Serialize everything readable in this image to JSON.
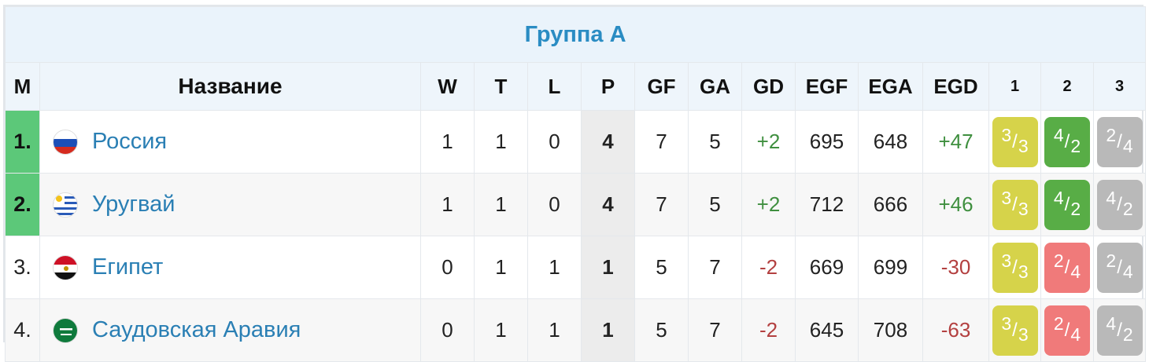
{
  "group_title": "Группа A",
  "headers": {
    "pos": "M",
    "name": "Название",
    "w": "W",
    "t": "T",
    "l": "L",
    "p": "P",
    "gf": "GF",
    "ga": "GA",
    "gd": "GD",
    "egf": "EGF",
    "ega": "EGA",
    "egd": "EGD",
    "r1": "1",
    "r2": "2",
    "r3": "3"
  },
  "colors": {
    "yellow_chip": "#d6d34a",
    "green_chip": "#58ad46",
    "gray_chip": "#b9b9b9",
    "red_chip": "#f07a7a",
    "qualify": "#5cc879"
  },
  "rows": [
    {
      "pos": "1.",
      "qualified": true,
      "team": "Россия",
      "flag": "russia-flag-icon",
      "w": "1",
      "t": "1",
      "l": "0",
      "p": "4",
      "gf": "7",
      "ga": "5",
      "gd": "+2",
      "egf": "695",
      "ega": "648",
      "egd": "+47",
      "results": [
        {
          "top": "3",
          "bot": "3",
          "color": "yellow"
        },
        {
          "top": "4",
          "bot": "2",
          "color": "green"
        },
        {
          "top": "2",
          "bot": "4",
          "color": "gray"
        }
      ]
    },
    {
      "pos": "2.",
      "qualified": true,
      "team": "Уругвай",
      "flag": "uruguay-flag-icon",
      "w": "1",
      "t": "1",
      "l": "0",
      "p": "4",
      "gf": "7",
      "ga": "5",
      "gd": "+2",
      "egf": "712",
      "ega": "666",
      "egd": "+46",
      "results": [
        {
          "top": "3",
          "bot": "3",
          "color": "yellow"
        },
        {
          "top": "4",
          "bot": "2",
          "color": "green"
        },
        {
          "top": "4",
          "bot": "2",
          "color": "gray"
        }
      ]
    },
    {
      "pos": "3.",
      "qualified": false,
      "team": "Египет",
      "flag": "egypt-flag-icon",
      "w": "0",
      "t": "1",
      "l": "1",
      "p": "1",
      "gf": "5",
      "ga": "7",
      "gd": "-2",
      "egf": "669",
      "ega": "699",
      "egd": "-30",
      "results": [
        {
          "top": "3",
          "bot": "3",
          "color": "yellow"
        },
        {
          "top": "2",
          "bot": "4",
          "color": "red"
        },
        {
          "top": "2",
          "bot": "4",
          "color": "gray"
        }
      ]
    },
    {
      "pos": "4.",
      "qualified": false,
      "team": "Саудовская Аравия",
      "flag": "saudi-arabia-flag-icon",
      "w": "0",
      "t": "1",
      "l": "1",
      "p": "1",
      "gf": "5",
      "ga": "7",
      "gd": "-2",
      "egf": "645",
      "ega": "708",
      "egd": "-63",
      "results": [
        {
          "top": "3",
          "bot": "3",
          "color": "yellow"
        },
        {
          "top": "2",
          "bot": "4",
          "color": "red"
        },
        {
          "top": "4",
          "bot": "2",
          "color": "gray"
        }
      ]
    }
  ]
}
